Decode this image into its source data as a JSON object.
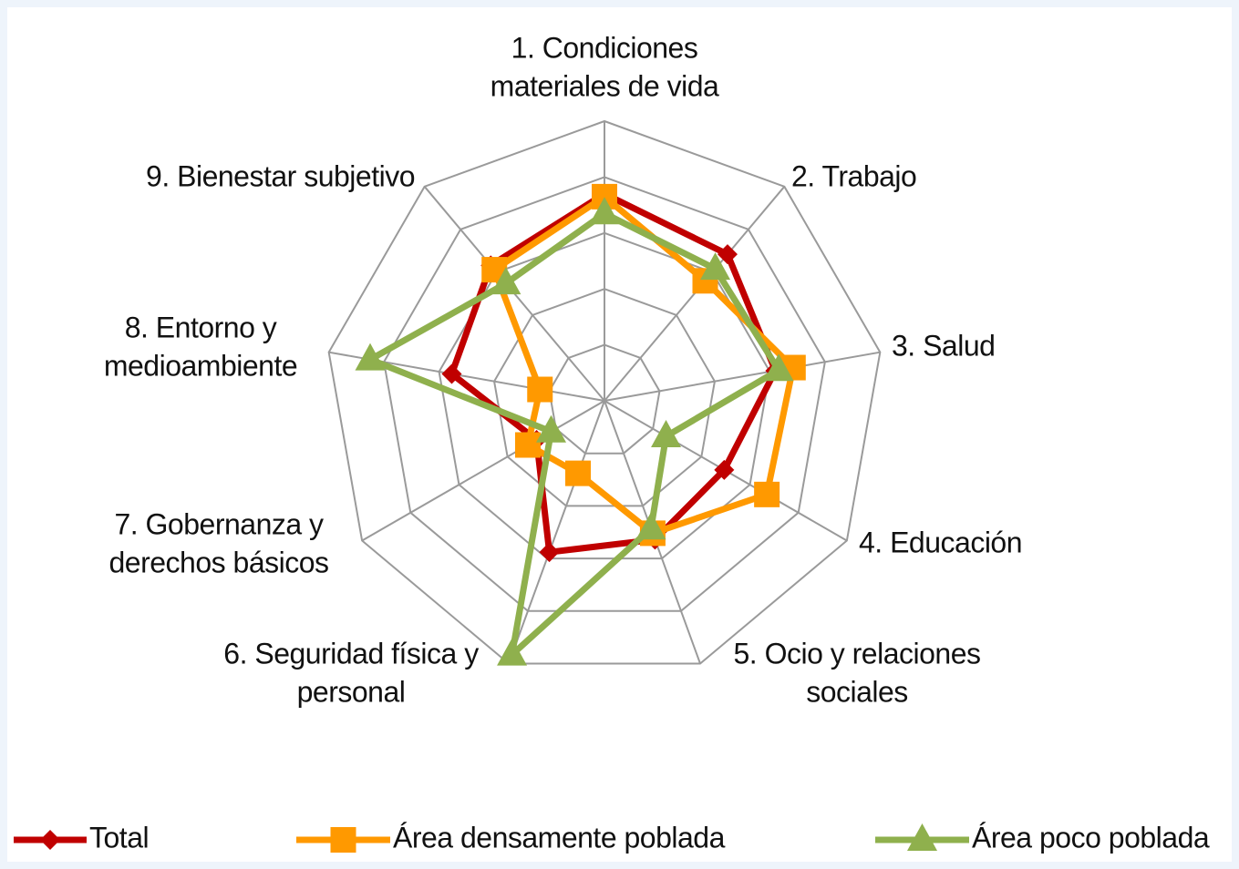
{
  "chart_data": {
    "type": "radar",
    "categories": [
      [
        "1. Condiciones",
        "materiales de vida"
      ],
      [
        "2. Trabajo"
      ],
      [
        "3. Salud"
      ],
      [
        "4. Educación"
      ],
      [
        "5. Ocio y relaciones",
        "sociales"
      ],
      [
        "6. Seguridad física y",
        "personal"
      ],
      [
        "7. Gobernanza y",
        "derechos básicos"
      ],
      [
        "8. Entorno y",
        "medioambiente"
      ],
      [
        "9. Bienestar subjetivo"
      ]
    ],
    "rlim": [
      0,
      5
    ],
    "rticks": [
      1,
      2,
      3,
      4,
      5
    ],
    "grid": true,
    "legend": "bottom",
    "series": [
      {
        "name": "Total",
        "color": "#c00000",
        "marker": "diamond",
        "values": [
          3.7,
          3.42,
          3.1,
          2.47,
          2.64,
          2.88,
          1.4,
          2.77,
          3.16
        ]
      },
      {
        "name": "Área densamente poblada",
        "color": "#ff9900",
        "marker": "square",
        "values": [
          3.65,
          2.8,
          3.42,
          3.35,
          2.52,
          1.38,
          1.58,
          1.17,
          3.06
        ]
      },
      {
        "name": "Área poco poblada",
        "color": "#8fb04d",
        "marker": "triangle",
        "values": [
          3.35,
          3.08,
          3.16,
          1.27,
          2.43,
          4.83,
          1.1,
          4.25,
          2.74
        ]
      }
    ]
  }
}
